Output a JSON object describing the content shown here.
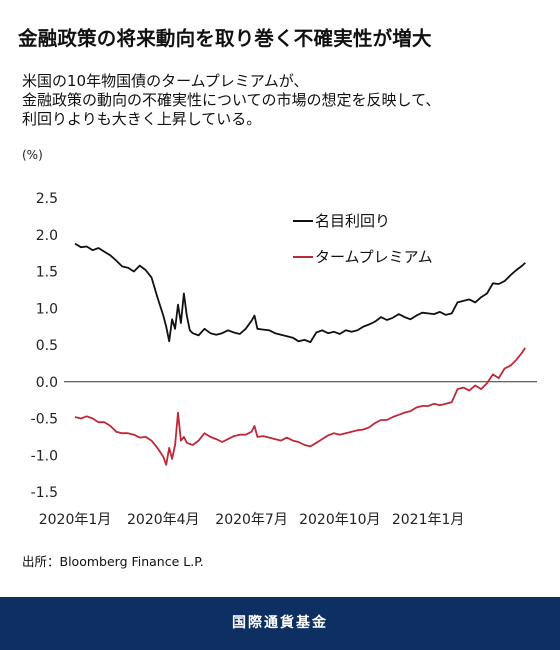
{
  "header": {
    "title": "金融政策の将来動向を取り巻く不確実性が増大",
    "subtitle_lines": [
      "米国の10年物国債のタームプレミアムが、",
      "金融政策の動向の不確実性についての市場の想定を反映して、",
      "利回りよりも大きく上昇している。"
    ]
  },
  "source": "出所：Bloomberg Finance L.P.",
  "footer": {
    "label": "国際通貨基金"
  },
  "colors": {
    "series_yield": "#111111",
    "series_premium": "#c0283a",
    "footer_bg": "#0d2f62"
  },
  "chart_data": {
    "type": "line",
    "unit_label": "(%)",
    "ylim": [
      -1.5,
      2.5
    ],
    "yticks": [
      2.5,
      2.0,
      1.5,
      1.0,
      0.5,
      0.0,
      -0.5,
      -1.0,
      -1.5
    ],
    "ytick_labels": [
      "2.5",
      "2.0",
      "1.5",
      "1.0",
      "0.5",
      "0.0",
      "-0.5",
      "-1.0",
      "-1.5"
    ],
    "x_categories": [
      "2020年1月",
      "2020年4月",
      "2020年7月",
      "2020年10月",
      "2021年1月"
    ],
    "xlim": [
      0,
      15.7
    ],
    "zero_line": true,
    "legend_position": "top-right",
    "series": [
      {
        "name": "名目利回り",
        "color": "#111111",
        "points": [
          [
            0.0,
            1.88
          ],
          [
            0.2,
            1.83
          ],
          [
            0.4,
            1.84
          ],
          [
            0.6,
            1.79
          ],
          [
            0.8,
            1.82
          ],
          [
            1.0,
            1.77
          ],
          [
            1.2,
            1.72
          ],
          [
            1.4,
            1.65
          ],
          [
            1.6,
            1.57
          ],
          [
            1.8,
            1.55
          ],
          [
            2.0,
            1.5
          ],
          [
            2.2,
            1.58
          ],
          [
            2.4,
            1.52
          ],
          [
            2.6,
            1.42
          ],
          [
            2.8,
            1.15
          ],
          [
            3.0,
            0.9
          ],
          [
            3.1,
            0.75
          ],
          [
            3.2,
            0.55
          ],
          [
            3.3,
            0.85
          ],
          [
            3.4,
            0.72
          ],
          [
            3.5,
            1.05
          ],
          [
            3.6,
            0.8
          ],
          [
            3.7,
            1.2
          ],
          [
            3.8,
            0.9
          ],
          [
            3.9,
            0.7
          ],
          [
            4.0,
            0.66
          ],
          [
            4.2,
            0.63
          ],
          [
            4.4,
            0.72
          ],
          [
            4.6,
            0.66
          ],
          [
            4.8,
            0.64
          ],
          [
            5.0,
            0.66
          ],
          [
            5.2,
            0.7
          ],
          [
            5.4,
            0.67
          ],
          [
            5.6,
            0.65
          ],
          [
            5.8,
            0.72
          ],
          [
            6.0,
            0.83
          ],
          [
            6.1,
            0.9
          ],
          [
            6.2,
            0.72
          ],
          [
            6.4,
            0.71
          ],
          [
            6.6,
            0.7
          ],
          [
            6.8,
            0.66
          ],
          [
            7.0,
            0.64
          ],
          [
            7.2,
            0.62
          ],
          [
            7.4,
            0.6
          ],
          [
            7.6,
            0.55
          ],
          [
            7.8,
            0.57
          ],
          [
            8.0,
            0.54
          ],
          [
            8.2,
            0.67
          ],
          [
            8.4,
            0.7
          ],
          [
            8.6,
            0.66
          ],
          [
            8.8,
            0.68
          ],
          [
            9.0,
            0.65
          ],
          [
            9.2,
            0.7
          ],
          [
            9.4,
            0.68
          ],
          [
            9.6,
            0.7
          ],
          [
            9.8,
            0.75
          ],
          [
            10.0,
            0.78
          ],
          [
            10.2,
            0.82
          ],
          [
            10.4,
            0.88
          ],
          [
            10.6,
            0.84
          ],
          [
            10.8,
            0.87
          ],
          [
            11.0,
            0.92
          ],
          [
            11.2,
            0.88
          ],
          [
            11.4,
            0.85
          ],
          [
            11.6,
            0.9
          ],
          [
            11.8,
            0.94
          ],
          [
            12.0,
            0.93
          ],
          [
            12.2,
            0.92
          ],
          [
            12.4,
            0.95
          ],
          [
            12.6,
            0.91
          ],
          [
            12.8,
            0.93
          ],
          [
            13.0,
            1.08
          ],
          [
            13.2,
            1.1
          ],
          [
            13.4,
            1.12
          ],
          [
            13.6,
            1.08
          ],
          [
            13.8,
            1.15
          ],
          [
            14.0,
            1.2
          ],
          [
            14.2,
            1.34
          ],
          [
            14.4,
            1.33
          ],
          [
            14.6,
            1.37
          ],
          [
            14.8,
            1.45
          ],
          [
            15.0,
            1.52
          ],
          [
            15.2,
            1.58
          ],
          [
            15.3,
            1.62
          ]
        ]
      },
      {
        "name": "タームプレミアム",
        "color": "#c0283a",
        "points": [
          [
            0.0,
            -0.48
          ],
          [
            0.2,
            -0.5
          ],
          [
            0.4,
            -0.47
          ],
          [
            0.6,
            -0.5
          ],
          [
            0.8,
            -0.55
          ],
          [
            1.0,
            -0.55
          ],
          [
            1.2,
            -0.6
          ],
          [
            1.4,
            -0.68
          ],
          [
            1.6,
            -0.7
          ],
          [
            1.8,
            -0.7
          ],
          [
            2.0,
            -0.72
          ],
          [
            2.2,
            -0.76
          ],
          [
            2.4,
            -0.75
          ],
          [
            2.6,
            -0.8
          ],
          [
            2.8,
            -0.9
          ],
          [
            3.0,
            -1.02
          ],
          [
            3.1,
            -1.13
          ],
          [
            3.2,
            -0.9
          ],
          [
            3.3,
            -1.05
          ],
          [
            3.4,
            -0.86
          ],
          [
            3.5,
            -0.42
          ],
          [
            3.6,
            -0.8
          ],
          [
            3.7,
            -0.75
          ],
          [
            3.8,
            -0.83
          ],
          [
            4.0,
            -0.86
          ],
          [
            4.2,
            -0.8
          ],
          [
            4.4,
            -0.7
          ],
          [
            4.6,
            -0.75
          ],
          [
            4.8,
            -0.78
          ],
          [
            5.0,
            -0.82
          ],
          [
            5.2,
            -0.78
          ],
          [
            5.4,
            -0.74
          ],
          [
            5.6,
            -0.72
          ],
          [
            5.8,
            -0.72
          ],
          [
            6.0,
            -0.68
          ],
          [
            6.1,
            -0.6
          ],
          [
            6.2,
            -0.75
          ],
          [
            6.4,
            -0.74
          ],
          [
            6.6,
            -0.76
          ],
          [
            6.8,
            -0.78
          ],
          [
            7.0,
            -0.8
          ],
          [
            7.2,
            -0.76
          ],
          [
            7.4,
            -0.8
          ],
          [
            7.6,
            -0.82
          ],
          [
            7.8,
            -0.86
          ],
          [
            8.0,
            -0.88
          ],
          [
            8.2,
            -0.83
          ],
          [
            8.4,
            -0.78
          ],
          [
            8.6,
            -0.73
          ],
          [
            8.8,
            -0.7
          ],
          [
            9.0,
            -0.72
          ],
          [
            9.2,
            -0.7
          ],
          [
            9.4,
            -0.68
          ],
          [
            9.6,
            -0.66
          ],
          [
            9.8,
            -0.65
          ],
          [
            10.0,
            -0.62
          ],
          [
            10.2,
            -0.56
          ],
          [
            10.4,
            -0.52
          ],
          [
            10.6,
            -0.52
          ],
          [
            10.8,
            -0.48
          ],
          [
            11.0,
            -0.45
          ],
          [
            11.2,
            -0.42
          ],
          [
            11.4,
            -0.4
          ],
          [
            11.6,
            -0.35
          ],
          [
            11.8,
            -0.33
          ],
          [
            12.0,
            -0.33
          ],
          [
            12.2,
            -0.3
          ],
          [
            12.4,
            -0.32
          ],
          [
            12.6,
            -0.3
          ],
          [
            12.8,
            -0.28
          ],
          [
            13.0,
            -0.1
          ],
          [
            13.2,
            -0.08
          ],
          [
            13.4,
            -0.12
          ],
          [
            13.6,
            -0.05
          ],
          [
            13.8,
            -0.1
          ],
          [
            14.0,
            -0.02
          ],
          [
            14.2,
            0.1
          ],
          [
            14.4,
            0.05
          ],
          [
            14.6,
            0.18
          ],
          [
            14.8,
            0.22
          ],
          [
            15.0,
            0.3
          ],
          [
            15.2,
            0.4
          ],
          [
            15.3,
            0.46
          ]
        ]
      }
    ]
  }
}
